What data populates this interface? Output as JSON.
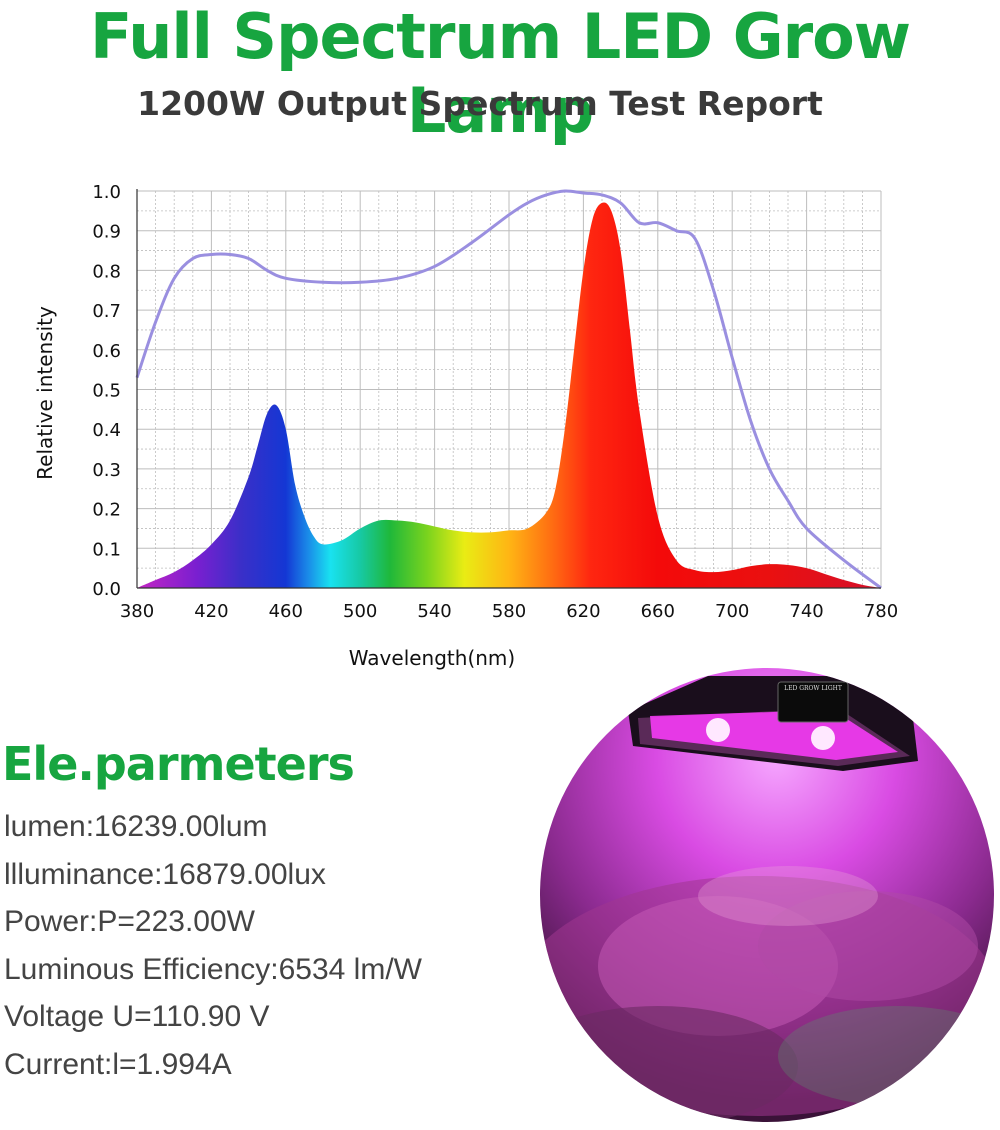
{
  "header": {
    "title": "Full Spectrum LED Grow Lamp",
    "subtitle": "1200W Output Spectrum Test Report"
  },
  "chart_data": {
    "type": "area",
    "xlabel": "Wavelength(nm)",
    "ylabel": "Relative intensity",
    "xlim": [
      380,
      780
    ],
    "ylim": [
      0,
      1.0
    ],
    "x_ticks": [
      "380",
      "420",
      "460",
      "500",
      "540",
      "580",
      "620",
      "660",
      "700",
      "740",
      "780"
    ],
    "y_ticks": [
      "0.0",
      "0.1",
      "0.2",
      "0.3",
      "0.4",
      "0.5",
      "0.6",
      "0.7",
      "0.8",
      "0.9",
      "1.0"
    ],
    "grid": true,
    "series": [
      {
        "style": "filled area with rainbow gradient by wavelength",
        "x": [
          380,
          390,
          400,
          410,
          420,
          430,
          440,
          445,
          450,
          455,
          460,
          465,
          470,
          475,
          480,
          490,
          500,
          510,
          520,
          530,
          540,
          550,
          560,
          570,
          580,
          590,
          600,
          605,
          610,
          615,
          620,
          625,
          630,
          635,
          640,
          645,
          650,
          660,
          670,
          680,
          690,
          700,
          710,
          720,
          730,
          740,
          750,
          760,
          770,
          780
        ],
        "y": [
          0.0,
          0.02,
          0.04,
          0.07,
          0.11,
          0.17,
          0.28,
          0.36,
          0.44,
          0.46,
          0.4,
          0.26,
          0.18,
          0.13,
          0.11,
          0.12,
          0.15,
          0.17,
          0.17,
          0.165,
          0.155,
          0.145,
          0.14,
          0.14,
          0.145,
          0.15,
          0.19,
          0.25,
          0.4,
          0.6,
          0.8,
          0.93,
          0.97,
          0.95,
          0.85,
          0.65,
          0.45,
          0.18,
          0.07,
          0.045,
          0.04,
          0.045,
          0.055,
          0.06,
          0.058,
          0.05,
          0.035,
          0.02,
          0.008,
          0.0
        ]
      },
      {
        "style": "line",
        "color": "#9a8fe0",
        "x": [
          380,
          390,
          400,
          410,
          420,
          430,
          440,
          450,
          460,
          480,
          500,
          520,
          540,
          560,
          580,
          590,
          600,
          610,
          620,
          630,
          640,
          650,
          660,
          670,
          680,
          690,
          700,
          710,
          720,
          730,
          740,
          760,
          780
        ],
        "y": [
          0.53,
          0.67,
          0.78,
          0.83,
          0.84,
          0.84,
          0.83,
          0.8,
          0.78,
          0.77,
          0.77,
          0.78,
          0.81,
          0.87,
          0.94,
          0.97,
          0.99,
          1.0,
          0.995,
          0.99,
          0.97,
          0.92,
          0.92,
          0.9,
          0.88,
          0.75,
          0.58,
          0.42,
          0.3,
          0.22,
          0.15,
          0.07,
          0.0
        ]
      }
    ]
  },
  "params": {
    "heading": "Ele.parmeters",
    "items": [
      "lumen:16239.00lum",
      "llluminance:16879.00lux",
      "Power:P=223.00W",
      "Luminous Efficiency:6534 lm/W",
      "Voltage U=110.90 V",
      "Current:l=1.994A"
    ]
  },
  "photo": {
    "panel_label": "LED GROW LIGHT"
  }
}
